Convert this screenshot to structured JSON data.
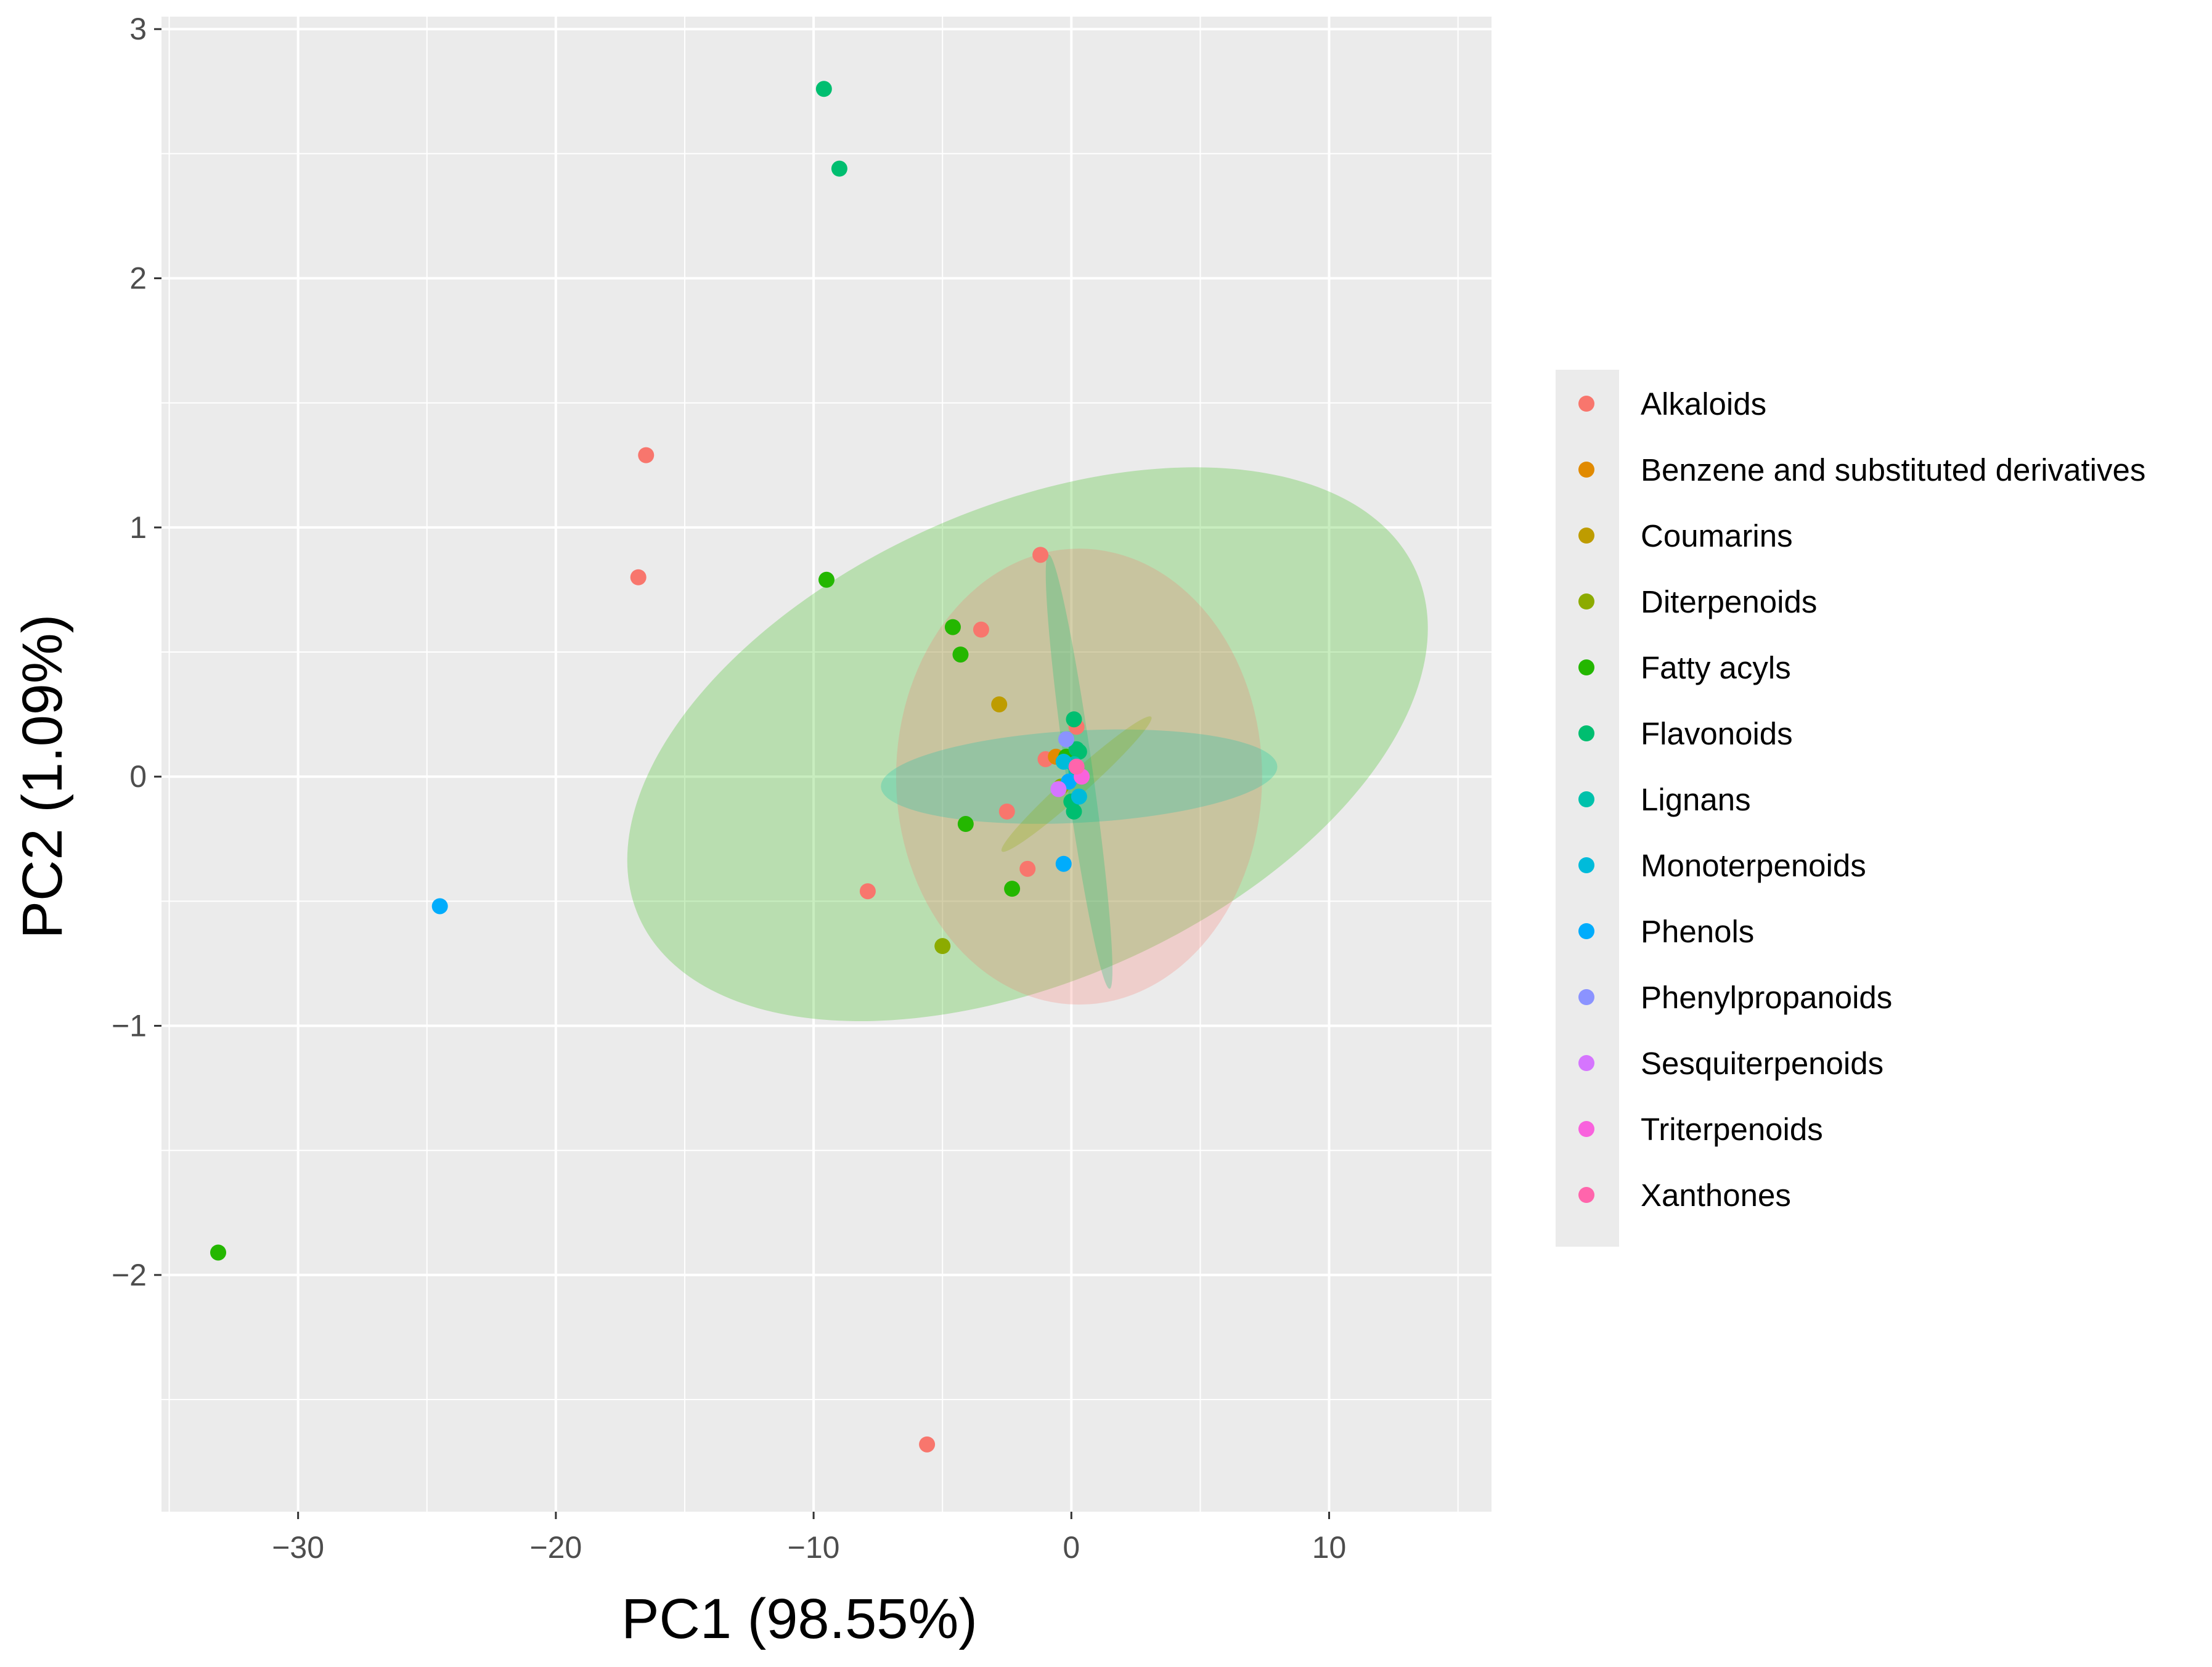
{
  "chart_data": {
    "type": "scatter",
    "xlabel": "PC1 (98.55%)",
    "ylabel": "PC2 (1.09%)",
    "xlim": [
      -35.3,
      16.3
    ],
    "ylim": [
      -2.95,
      3.05
    ],
    "x_ticks": [
      -30,
      -20,
      -10,
      0,
      10
    ],
    "x_tick_labels": [
      "−30",
      "−20",
      "−10",
      "0",
      "10"
    ],
    "y_ticks": [
      -2,
      -1,
      0,
      1,
      2,
      3
    ],
    "y_tick_labels": [
      "−2",
      "−1",
      "0",
      "1",
      "2",
      "3"
    ],
    "grid": true,
    "legend_position": "right",
    "series": [
      {
        "name": "Alkaloids",
        "color": "#F8766D",
        "points": [
          [
            -16.5,
            1.29
          ],
          [
            -16.8,
            0.8
          ],
          [
            -1.2,
            0.89
          ],
          [
            -3.5,
            0.59
          ],
          [
            -7.9,
            -0.46
          ],
          [
            -5.6,
            -2.68
          ],
          [
            -2.5,
            -0.14
          ],
          [
            -1.7,
            -0.37
          ],
          [
            -1.0,
            0.07
          ],
          [
            0.2,
            0.2
          ]
        ],
        "ellipse": {
          "cx": 0,
          "cy": 0,
          "rx": 7.1,
          "ry": 0.915,
          "angle_deg": 0,
          "color": "#F8766D"
        }
      },
      {
        "name": "Benzene and substituted derivatives",
        "color": "#E18A00",
        "points": [
          [
            -0.6,
            0.08
          ]
        ]
      },
      {
        "name": "Coumarins",
        "color": "#BE9C00",
        "points": [
          [
            -2.8,
            0.29
          ]
        ]
      },
      {
        "name": "Diterpenoids",
        "color": "#8CAB00",
        "points": [
          [
            -5.0,
            -0.68
          ],
          [
            -0.4,
            -0.04
          ]
        ],
        "ellipse": {
          "cx": 0.2,
          "cy": -0.03,
          "rx": 3.9,
          "ry": 0.1,
          "angle_deg": 42,
          "color": "#8CAB00"
        }
      },
      {
        "name": "Fatty acyls",
        "color": "#24B700",
        "points": [
          [
            -33.1,
            -1.91
          ],
          [
            -9.5,
            0.79
          ],
          [
            -4.6,
            0.6
          ],
          [
            -4.3,
            0.49
          ],
          [
            -4.1,
            -0.19
          ],
          [
            -2.3,
            -0.45
          ],
          [
            -0.2,
            0.08
          ]
        ],
        "ellipse": {
          "cx": -1.7,
          "cy": 0.13,
          "rx": 16.5,
          "ry": 0.95,
          "angle_deg": 0,
          "rotation_scaled": 24,
          "color": "#24B700"
        }
      },
      {
        "name": "Flavonoids",
        "color": "#00BE70",
        "points": [
          [
            -9.6,
            2.76
          ],
          [
            -9.0,
            2.44
          ],
          [
            0.1,
            0.23
          ],
          [
            0.2,
            0.11
          ],
          [
            0.3,
            0.1
          ],
          [
            0.1,
            -0.14
          ],
          [
            0.0,
            -0.1
          ]
        ],
        "ellipse": {
          "cx": 0.3,
          "cy": 0.02,
          "rx": 0.5,
          "ry": 0.88,
          "angle_deg": 0,
          "color": "#00BE70"
        }
      },
      {
        "name": "Lignans",
        "color": "#00C1AB",
        "points": [
          [
            0.1,
            0.05
          ],
          [
            0.2,
            0.02
          ]
        ],
        "ellipse": {
          "cx": 0.3,
          "cy": 0.0,
          "rx": 7.7,
          "ry": 0.185,
          "angle_deg": 0,
          "color": "#00C1AB"
        }
      },
      {
        "name": "Monoterpenoids",
        "color": "#00BBDA",
        "points": [
          [
            0.3,
            -0.08
          ],
          [
            -0.3,
            0.06
          ]
        ]
      },
      {
        "name": "Phenols",
        "color": "#00ACFC",
        "points": [
          [
            -24.5,
            -0.52
          ],
          [
            -0.3,
            -0.35
          ],
          [
            -0.1,
            -0.02
          ]
        ]
      },
      {
        "name": "Phenylpropanoids",
        "color": "#8B93FF",
        "points": [
          [
            -0.2,
            0.15
          ]
        ]
      },
      {
        "name": "Sesquiterpenoids",
        "color": "#D575FE",
        "points": [
          [
            -0.5,
            -0.05
          ]
        ]
      },
      {
        "name": "Triterpenoids",
        "color": "#F962DD",
        "points": [
          [
            0.4,
            0.0
          ]
        ]
      },
      {
        "name": "Xanthones",
        "color": "#FF65AC",
        "points": [
          [
            0.2,
            0.04
          ]
        ]
      }
    ]
  }
}
